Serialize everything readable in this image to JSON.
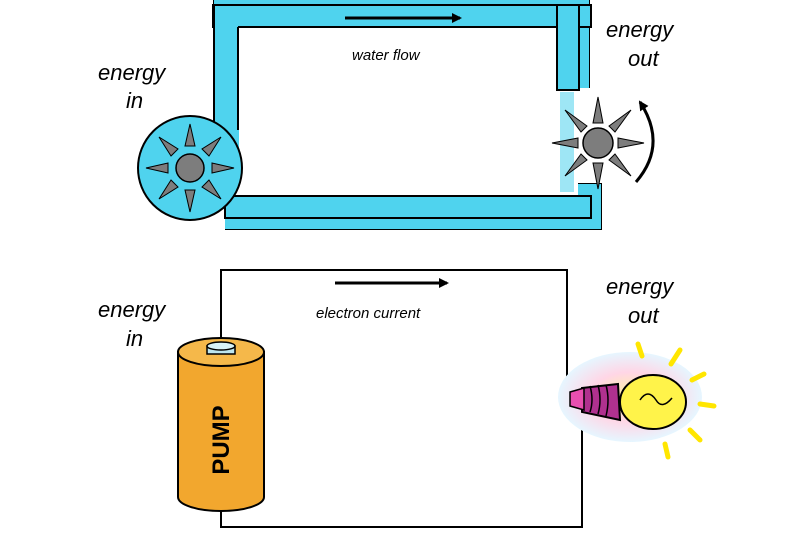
{
  "top_diagram": {
    "left_label_line1": "energy",
    "left_label_line2": "in",
    "flow_label": "water flow",
    "right_label_line1": "energy",
    "right_label_line2": "out"
  },
  "bottom_diagram": {
    "left_label_line1": "energy",
    "left_label_line2": "in",
    "flow_label": "electron current",
    "right_label_line1": "energy",
    "right_label_line2": "out",
    "battery_label": "PUMP"
  },
  "colors": {
    "pipe": "#4fd3ee",
    "pump_body": "#f2a72e",
    "gear_gray": "#7d7d7d"
  },
  "icons": [
    "pump-wheel-icon",
    "turbine-wheel-icon",
    "rotation-arrow-icon",
    "battery-icon",
    "light-bulb-icon"
  ]
}
